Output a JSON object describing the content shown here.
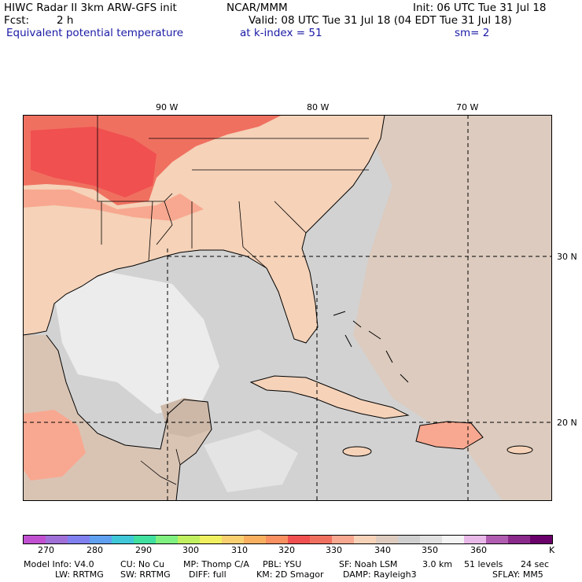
{
  "header": {
    "model": "HIWC Radar II 3km ARW-GFS init",
    "org": "NCAR/MMM",
    "init": "Init: 06 UTC Tue 31 Jul 18",
    "fcst_label": "Fcst:",
    "fcst_value": "2 h",
    "valid": "Valid: 08 UTC Tue 31 Jul 18 (04 EDT Tue 31 Jul 18)",
    "field": "Equivalent potential temperature",
    "level": "at k-index =  51",
    "smooth": "sm= 2"
  },
  "map": {
    "lon_labels": [
      "90 W",
      "80 W",
      "70 W"
    ],
    "lat_labels": [
      "30 N",
      "20 N"
    ]
  },
  "colorbar": {
    "ticks": [
      "270",
      "280",
      "290",
      "300",
      "310",
      "320",
      "330",
      "340",
      "350",
      "360"
    ],
    "unit": "K",
    "colors": [
      "#c050d0",
      "#a070d8",
      "#8080f0",
      "#60a0f0",
      "#40c8d8",
      "#40e0a0",
      "#80f080",
      "#c0f060",
      "#f0f060",
      "#f8d070",
      "#f8b060",
      "#f89060",
      "#f05050",
      "#f07060",
      "#f8a890",
      "#f5d2b8",
      "#dccbbe",
      "#cfcfcf",
      "#e0e0e0",
      "#f4f4f4",
      "#e8b8e8",
      "#b05cb0",
      "#8a2a8a",
      "#6a006a"
    ]
  },
  "footer": {
    "line1": [
      "Model Info: V4.0",
      "CU: No Cu",
      "MP: Thomp C/A",
      "PBL: YSU",
      "SF: Noah LSM",
      "3.0 km",
      "51 levels",
      "24 sec"
    ],
    "line2": [
      "LW: RRTMG",
      "SW: RRTMG",
      "DIFF: full",
      "KM: 2D Smagor",
      "DAMP: Rayleigh3",
      "SFLAY: MM5"
    ]
  }
}
